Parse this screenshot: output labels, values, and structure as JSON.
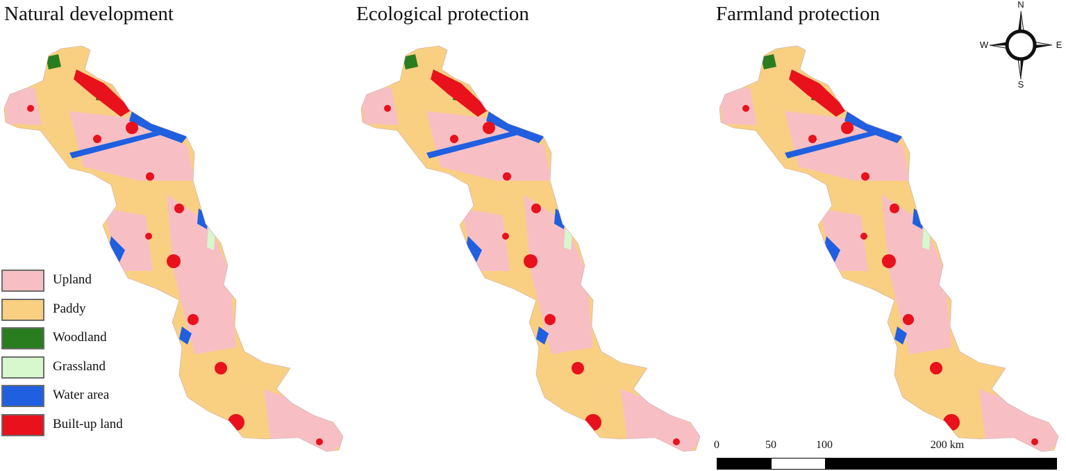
{
  "panels": [
    {
      "title": "Natural development"
    },
    {
      "title": "Ecological protection"
    },
    {
      "title": "Farmland protection"
    }
  ],
  "legend": [
    {
      "label": "Upland",
      "color": "#f7bfc4"
    },
    {
      "label": "Paddy",
      "color": "#f9cf82"
    },
    {
      "label": "Woodland",
      "color": "#2a7d1f"
    },
    {
      "label": "Grassland",
      "color": "#d7f7cc"
    },
    {
      "label": "Water area",
      "color": "#1f5fe0"
    },
    {
      "label": "Built-up land",
      "color": "#e8111c"
    }
  ],
  "compass": {
    "north": "N",
    "south": "S",
    "east": "E",
    "west": "W"
  },
  "scale_bar": {
    "ticks": [
      "0",
      "50",
      "100",
      "200 km"
    ],
    "tick_values": [
      0,
      50,
      100,
      200
    ]
  }
}
